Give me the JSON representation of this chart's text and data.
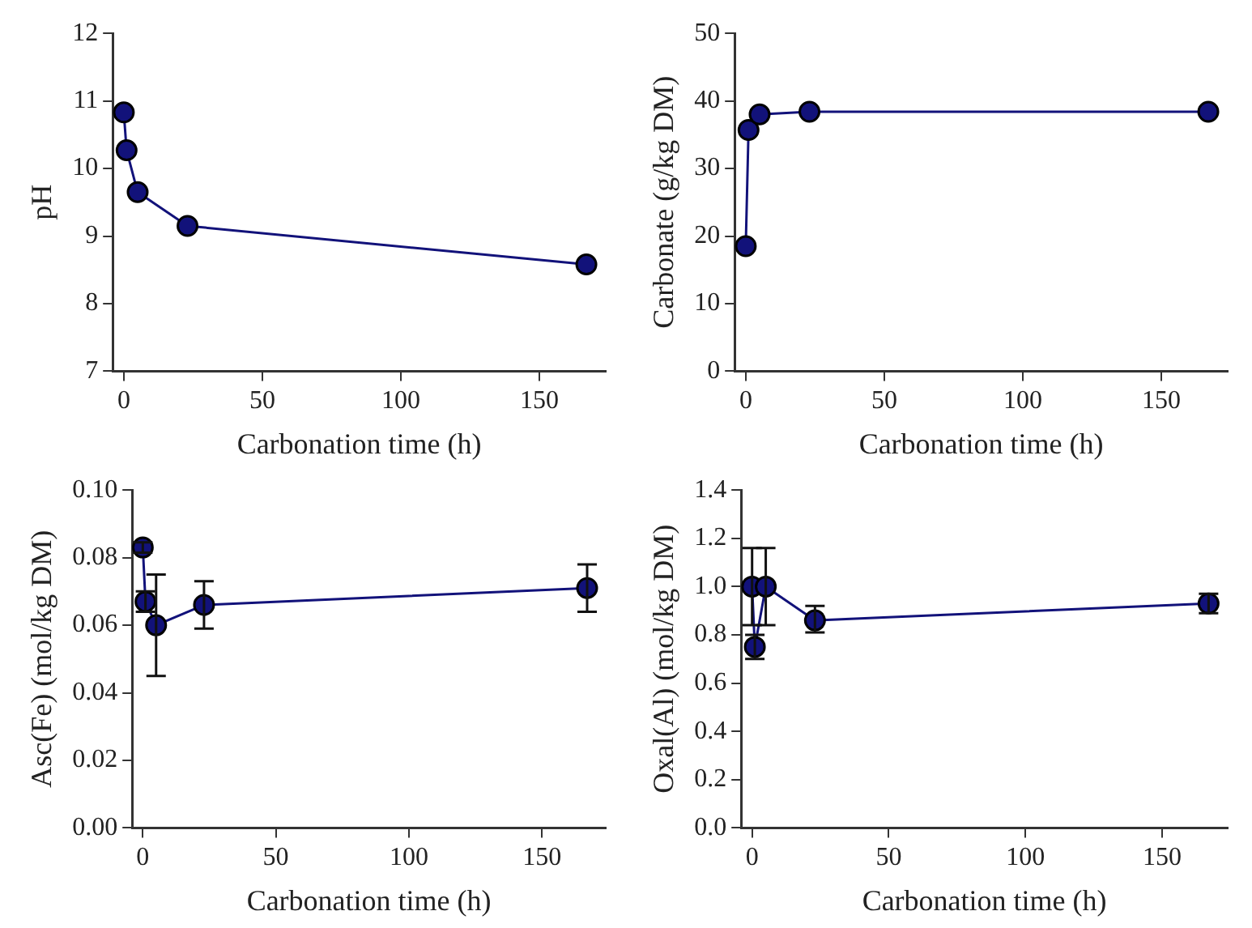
{
  "chart_data": [
    {
      "type": "line",
      "xlabel": "Carbonation time (h)",
      "ylabel": "pH",
      "x": [
        0,
        1,
        5,
        23,
        167
      ],
      "xlim": [
        -4,
        174
      ],
      "xticks": [
        0,
        50,
        100,
        150
      ],
      "ylim": [
        7,
        12
      ],
      "yticks": [
        7,
        8,
        9,
        10,
        11,
        12
      ],
      "marker": "circle",
      "grid": false,
      "series": [
        {
          "color": "#12127a",
          "values": [
            10.83,
            10.27,
            9.65,
            9.15,
            8.58
          ]
        }
      ]
    },
    {
      "type": "line",
      "xlabel": "Carbonation time (h)",
      "ylabel": "Carbonate (g/kg DM)",
      "x": [
        0,
        1,
        5,
        23,
        167
      ],
      "xlim": [
        -4,
        174
      ],
      "xticks": [
        0,
        50,
        100,
        150
      ],
      "ylim": [
        0,
        50
      ],
      "yticks": [
        0,
        10,
        20,
        30,
        40,
        50
      ],
      "marker": "circle",
      "grid": false,
      "series": [
        {
          "color": "#12127a",
          "values": [
            18.5,
            35.7,
            38.0,
            38.4,
            38.4
          ]
        }
      ]
    },
    {
      "type": "line",
      "xlabel": "Carbonation time (h)",
      "ylabel": "Asc(Fe) (mol/kg DM)",
      "x": [
        0,
        1,
        5,
        23,
        167
      ],
      "xlim": [
        -4,
        174
      ],
      "xticks": [
        0,
        50,
        100,
        150
      ],
      "ylim": [
        0,
        0.1
      ],
      "yticks": [
        {
          "value": 0,
          "label": "0.00"
        },
        {
          "value": 0.02,
          "label": "0.02"
        },
        {
          "value": 0.04,
          "label": "0.04"
        },
        {
          "value": 0.06,
          "label": "0.06"
        },
        {
          "value": 0.08,
          "label": "0.08"
        },
        {
          "value": 0.1,
          "label": "0.10"
        }
      ],
      "marker": "circle",
      "grid": false,
      "series": [
        {
          "color": "#12127a",
          "values": [
            0.083,
            0.067,
            0.06,
            0.066,
            0.071
          ],
          "errors": [
            0.0015,
            0.003,
            [
              0.045,
              0.075
            ],
            [
              0.059,
              0.073
            ],
            [
              0.064,
              0.078
            ]
          ]
        }
      ]
    },
    {
      "type": "line",
      "xlabel": "Carbonation time (h)",
      "ylabel": "Oxal(Al) (mol/kg DM)",
      "x": [
        0,
        1,
        5,
        23,
        167
      ],
      "xlim": [
        -4,
        174
      ],
      "xticks": [
        0,
        50,
        100,
        150
      ],
      "ylim": [
        0,
        1.4
      ],
      "yticks": [
        {
          "value": 0,
          "label": "0.0"
        },
        {
          "value": 0.2,
          "label": "0.2"
        },
        {
          "value": 0.4,
          "label": "0.4"
        },
        {
          "value": 0.6,
          "label": "0.6"
        },
        {
          "value": 0.8,
          "label": "0.8"
        },
        {
          "value": 1.0,
          "label": "1.0"
        },
        {
          "value": 1.2,
          "label": "1.2"
        },
        {
          "value": 1.4,
          "label": "1.4"
        }
      ],
      "marker": "circle",
      "grid": false,
      "series": [
        {
          "color": "#12127a",
          "values": [
            1.0,
            0.75,
            1.0,
            0.86,
            0.93
          ],
          "errors": [
            0.16,
            0.05,
            0.16,
            [
              0.81,
              0.92
            ],
            [
              0.89,
              0.97
            ]
          ]
        }
      ]
    }
  ]
}
